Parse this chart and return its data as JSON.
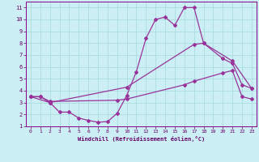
{
  "xlabel": "Windchill (Refroidissement éolien,°C)",
  "bg_color": "#cceef5",
  "grid_color": "#aadddd",
  "line_color": "#993399",
  "xlim": [
    -0.5,
    23.5
  ],
  "ylim": [
    1,
    11.5
  ],
  "xticks": [
    0,
    1,
    2,
    3,
    4,
    5,
    6,
    7,
    8,
    9,
    10,
    11,
    12,
    13,
    14,
    15,
    16,
    17,
    18,
    19,
    20,
    21,
    22,
    23
  ],
  "yticks": [
    1,
    2,
    3,
    4,
    5,
    6,
    7,
    8,
    9,
    10,
    11
  ],
  "line1_x": [
    0,
    1,
    2,
    3,
    4,
    5,
    6,
    7,
    8,
    9,
    10,
    11,
    12,
    13,
    14,
    15,
    16,
    17,
    18,
    20,
    21,
    22,
    23
  ],
  "line1_y": [
    3.5,
    3.5,
    3.0,
    2.2,
    2.2,
    1.7,
    1.5,
    1.35,
    1.4,
    2.1,
    3.6,
    5.6,
    8.4,
    10.0,
    10.2,
    9.5,
    11.0,
    11.0,
    8.0,
    6.7,
    6.3,
    4.5,
    4.2
  ],
  "line2_x": [
    0,
    2,
    10,
    17,
    18,
    21,
    23
  ],
  "line2_y": [
    3.5,
    3.0,
    4.3,
    7.9,
    8.0,
    6.5,
    4.2
  ],
  "line3_x": [
    0,
    1,
    2,
    9,
    10,
    16,
    17,
    20,
    21,
    22,
    23
  ],
  "line3_y": [
    3.5,
    3.5,
    3.1,
    3.2,
    3.3,
    4.5,
    4.8,
    5.5,
    5.7,
    3.5,
    3.3
  ]
}
